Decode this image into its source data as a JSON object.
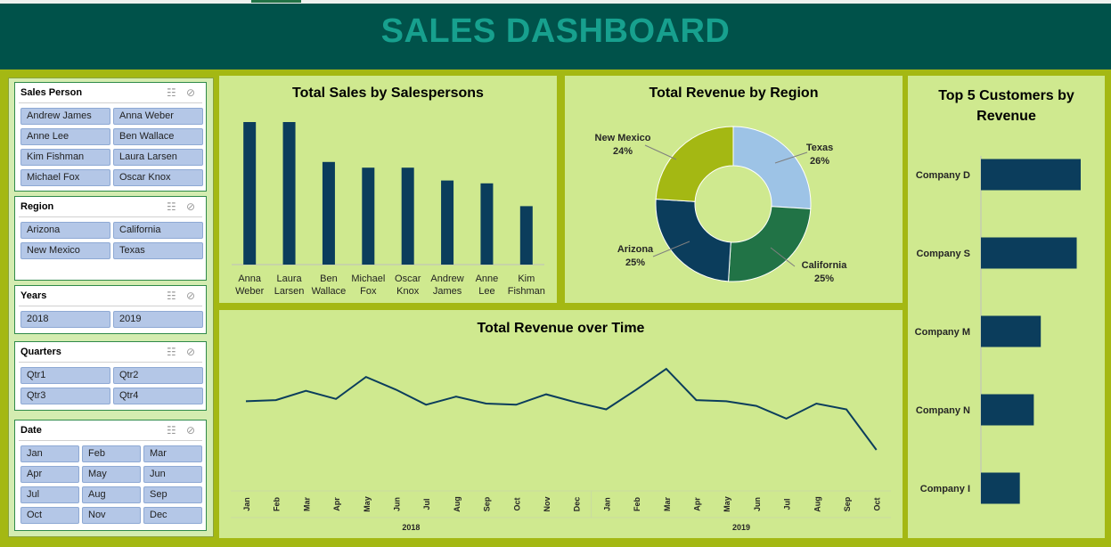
{
  "dashboard": {
    "title": "SALES DASHBOARD"
  },
  "slicers": {
    "sales_person": {
      "title": "Sales Person",
      "items": [
        "Andrew James",
        "Anna Weber",
        "Anne Lee",
        "Ben Wallace",
        "Kim Fishman",
        "Laura Larsen",
        "Michael Fox",
        "Oscar Knox"
      ]
    },
    "region": {
      "title": "Region",
      "items": [
        "Arizona",
        "California",
        "New Mexico",
        "Texas"
      ]
    },
    "years": {
      "title": "Years",
      "items": [
        "2018",
        "2019"
      ]
    },
    "quarters": {
      "title": "Quarters",
      "items": [
        "Qtr1",
        "Qtr2",
        "Qtr3",
        "Qtr4"
      ]
    },
    "date": {
      "title": "Date",
      "items": [
        "Jan",
        "Feb",
        "Mar",
        "Apr",
        "May",
        "Jun",
        "Jul",
        "Aug",
        "Sep",
        "Oct",
        "Nov",
        "Dec"
      ]
    }
  },
  "slicer_icons": [
    "multi-select-icon",
    "clear-filter-icon"
  ],
  "colors": {
    "banner": "#00524a",
    "title": "#17a08e",
    "frame": "#a4b813",
    "panel": "#cfe98f",
    "bar": "#0b3d5c",
    "slicer_item": "#b4c7e7"
  },
  "chart_data": [
    {
      "type": "bar",
      "title": "Total Sales by Salespersons",
      "categories": [
        [
          "Anna",
          "Weber"
        ],
        [
          "Laura",
          "Larsen"
        ],
        [
          "Ben",
          "Wallace"
        ],
        [
          "Michael",
          "Fox"
        ],
        [
          "Oscar",
          "Knox"
        ],
        [
          "Andrew",
          "James"
        ],
        [
          "Anne",
          "Lee"
        ],
        [
          "Kim",
          "Fishman"
        ]
      ],
      "values": [
        100,
        100,
        72,
        68,
        68,
        59,
        57,
        41
      ],
      "ylim": [
        0,
        100
      ],
      "grid": false
    },
    {
      "type": "pie",
      "title": "Total Revenue by Region",
      "donut": true,
      "slices": [
        {
          "label": "Texas",
          "pct": "26%",
          "value": 26,
          "color": "#9dc3e6"
        },
        {
          "label": "California",
          "pct": "25%",
          "value": 25,
          "color": "#217346"
        },
        {
          "label": "Arizona",
          "pct": "25%",
          "value": 25,
          "color": "#0b3d5c"
        },
        {
          "label": "New Mexico",
          "pct": "24%",
          "value": 24,
          "color": "#a4b813"
        }
      ]
    },
    {
      "type": "line",
      "title": "Total Revenue over Time",
      "groups": [
        {
          "label": "2018",
          "months": [
            "Jan",
            "Feb",
            "Mar",
            "Apr",
            "May",
            "Jun",
            "Jul",
            "Aug",
            "Sep",
            "Oct",
            "Nov",
            "Dec"
          ]
        },
        {
          "label": "2019",
          "months": [
            "Jan",
            "Feb",
            "Mar",
            "Apr",
            "May",
            "Jun",
            "Jul",
            "Aug",
            "Sep",
            "Oct"
          ]
        }
      ],
      "values": [
        52,
        53,
        61,
        54,
        73,
        62,
        49,
        56,
        50,
        49,
        58,
        51,
        45,
        62,
        80,
        53,
        52,
        48,
        37,
        50,
        45,
        10
      ],
      "ylim": [
        0,
        100
      ],
      "grid": false
    },
    {
      "type": "bar",
      "orientation": "horizontal",
      "title": "Top 5 Customers by Revenue",
      "categories": [
        "Company D",
        "Company S",
        "Company M",
        "Company N",
        "Company I"
      ],
      "values": [
        100,
        96,
        60,
        53,
        39
      ],
      "ylim": [
        0,
        100
      ],
      "grid": false
    }
  ]
}
